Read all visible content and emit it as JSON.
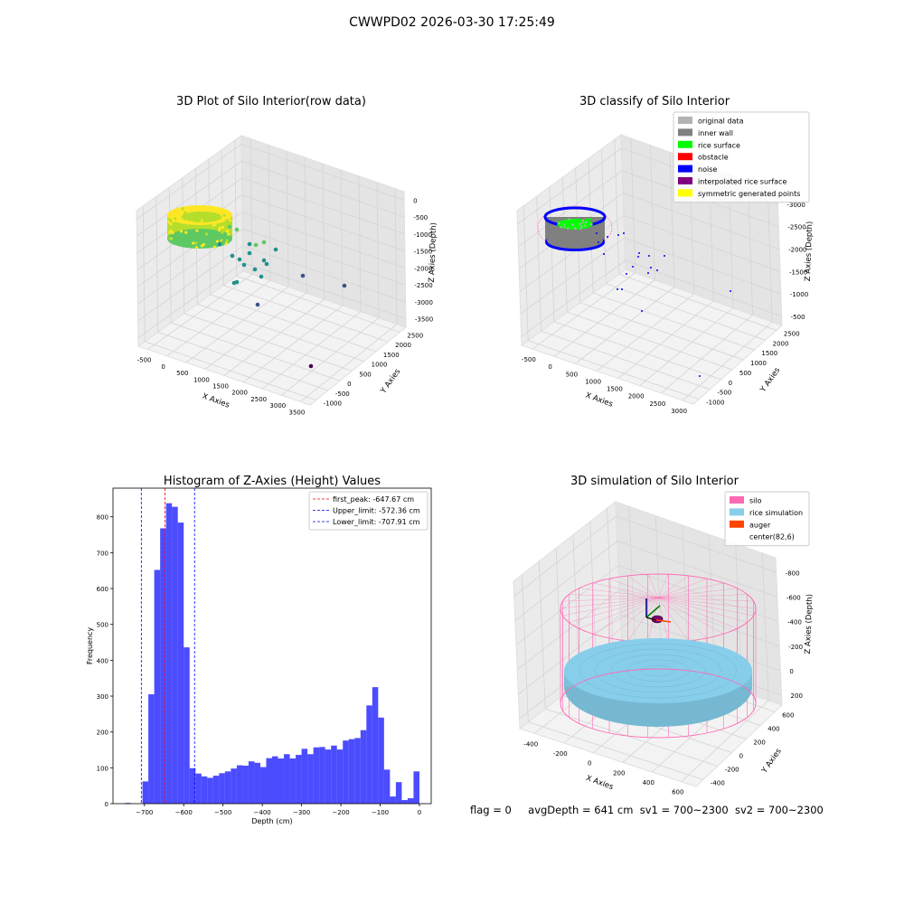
{
  "figure": {
    "suptitle": "CWWPD02 2026-03-30 17:25:49",
    "status_line": {
      "flag": "flag = 0",
      "avg_depth": "avgDepth = 641 cm",
      "sv1": "sv1 = 700~2300",
      "sv2": "sv2 = 700~2300"
    }
  },
  "chart_data": [
    {
      "type": "scatter",
      "subtype": "3d",
      "title": "3D Plot of Silo Interior(row data)",
      "xlabel": "X Axies",
      "ylabel": "Y Axies",
      "zlabel": "Z Axies (Depth)",
      "x_ticks": [
        "-500",
        "0",
        "500",
        "1000",
        "1500",
        "2000",
        "2500",
        "3000",
        "3500"
      ],
      "y_ticks": [
        "-1000",
        "-500",
        "0",
        "500",
        "1000",
        "1500",
        "2000",
        "2500"
      ],
      "z_ticks": [
        "0",
        "-500",
        "-1000",
        "-1500",
        "-2000",
        "-2500",
        "-3000",
        "-3500"
      ],
      "colormap": [
        "#440154",
        "#3b528b",
        "#21918c",
        "#5ec962",
        "#b5de2b",
        "#fde725"
      ],
      "grid": true
    },
    {
      "type": "scatter",
      "subtype": "3d",
      "title": "3D classify of Silo Interior",
      "xlabel": "X Axies",
      "ylabel": "Y Axies",
      "zlabel": "Z Axies (Depth)",
      "x_ticks": [
        "-500",
        "0",
        "500",
        "1000",
        "1500",
        "2000",
        "2500",
        "3000"
      ],
      "y_ticks": [
        "-1000",
        "-500",
        "0",
        "500",
        "1000",
        "1500",
        "2000",
        "2500"
      ],
      "z_ticks": [
        "-500",
        "-1000",
        "-1500",
        "-2000",
        "-2500",
        "-3000"
      ],
      "legend_position": "top-right",
      "legend": [
        {
          "label": "original data",
          "color": "#b3b3b3"
        },
        {
          "label": "inner wall",
          "color": "#808080"
        },
        {
          "label": "rice surface",
          "color": "#00ff00"
        },
        {
          "label": "obstacle",
          "color": "#ff0000"
        },
        {
          "label": "noise",
          "color": "#0000ff"
        },
        {
          "label": "interpolated rice surface",
          "color": "#800080"
        },
        {
          "label": "symmetric generated points",
          "color": "#ffff00"
        }
      ],
      "grid": true
    },
    {
      "type": "bar",
      "subtype": "histogram",
      "title": "Histogram of Z-Axies (Height) Values",
      "xlabel": "Depth (cm)",
      "ylabel": "Frequency",
      "xlim": [
        -780,
        30
      ],
      "ylim": [
        0,
        880
      ],
      "bar_color": "#0000ff",
      "bin_width": 15,
      "bin_starts": [
        -750,
        -735,
        -720,
        -705,
        -690,
        -675,
        -660,
        -645,
        -630,
        -615,
        -600,
        -585,
        -570,
        -555,
        -540,
        -525,
        -510,
        -495,
        -480,
        -465,
        -450,
        -435,
        -420,
        -405,
        -390,
        -375,
        -360,
        -345,
        -330,
        -315,
        -300,
        -285,
        -270,
        -255,
        -240,
        -225,
        -210,
        -195,
        -180,
        -165,
        -150,
        -135,
        -120,
        -105,
        -90,
        -75,
        -60,
        -45,
        -30,
        -15
      ],
      "values": [
        2,
        0,
        0,
        62,
        305,
        652,
        768,
        838,
        828,
        784,
        436,
        99,
        84,
        76,
        72,
        78,
        85,
        90,
        98,
        107,
        106,
        118,
        114,
        102,
        127,
        132,
        126,
        138,
        126,
        136,
        153,
        138,
        157,
        158,
        151,
        162,
        151,
        176,
        180,
        183,
        205,
        274,
        325,
        240,
        95,
        20,
        60,
        10,
        15,
        90
      ],
      "x_ticks": [
        -700,
        -600,
        -500,
        -400,
        -300,
        -200,
        -100,
        0
      ],
      "y_ticks": [
        0,
        100,
        200,
        300,
        400,
        500,
        600,
        700,
        800
      ],
      "vlines": [
        {
          "label": "first_peak: -647.67 cm",
          "value": -647.67,
          "color": "#ff0000"
        },
        {
          "label": "Upper_limit: -572.36 cm",
          "value": -572.36,
          "color": "#0000ff"
        },
        {
          "label": "Lower_limit: -707.91 cm",
          "value": -707.91,
          "color": "#0000ff"
        }
      ],
      "legend_position": "top-right",
      "grid": false
    },
    {
      "type": "area",
      "subtype": "3d-surface",
      "title": "3D simulation of Silo Interior",
      "xlabel": "X Axies",
      "ylabel": "Y Axies",
      "zlabel": "Z Axies (Depth)",
      "x_ticks": [
        "-400",
        "-200",
        "0",
        "200",
        "400",
        "600"
      ],
      "y_ticks": [
        "-400",
        "-200",
        "0",
        "200",
        "400",
        "600"
      ],
      "z_ticks": [
        "200",
        "0",
        "-200",
        "-400",
        "-600",
        "-800"
      ],
      "legend_position": "top-right",
      "legend": [
        {
          "label": "silo",
          "color": "#ff69b4"
        },
        {
          "label": "rice simulation",
          "color": "#87ceeb"
        },
        {
          "label": "auger",
          "color": "#ff4500"
        },
        {
          "label": "center(82,6)",
          "color": ""
        }
      ],
      "grid": true
    }
  ]
}
